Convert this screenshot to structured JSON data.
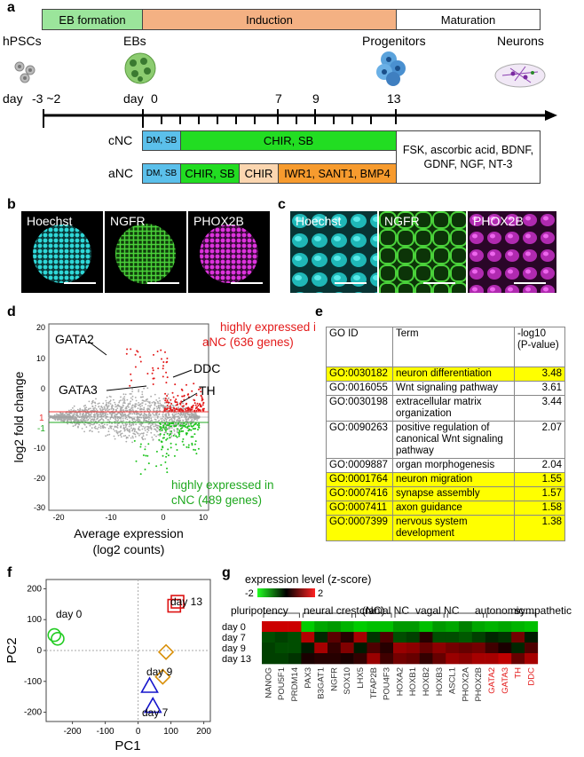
{
  "panel_labels": {
    "a": "a",
    "b": "b",
    "c": "c",
    "d": "d",
    "e": "e",
    "f": "f",
    "g": "g"
  },
  "timeline": {
    "phases": [
      "EB formation",
      "Induction",
      "Maturation"
    ],
    "stages": [
      "hPSCs",
      "EBs",
      "Progenitors",
      "Neurons"
    ],
    "day_label": "day",
    "day_minus": "-3 ~2",
    "day0": "0",
    "day7": "7",
    "day9": "9",
    "day13": "13",
    "cnc": {
      "label": "cNC",
      "seg1": "DM, SB",
      "seg2": "CHIR, SB"
    },
    "anc": {
      "label": "aNC",
      "seg1": "DM, SB",
      "seg2": "CHIR, SB",
      "seg3": "CHIR",
      "seg4": "IWR1, SANT1, BMP4"
    },
    "maturation": "FSK, ascorbic acid, BDNF, GDNF, NGF, NT-3",
    "colors": {
      "eb": "#9be59b",
      "induction": "#f4b183",
      "dmsb": "#5bc0eb",
      "chirsb": "#22dd22",
      "chir": "#fbd6b0",
      "iwr": "#f79b2e"
    }
  },
  "panel_b": [
    "Hoechst",
    "NGFR",
    "PHOX2B"
  ],
  "panel_c": [
    "Hoechst",
    "NGFR",
    "PHOX2B"
  ],
  "panel_d": {
    "ylabel": "log2 fold change",
    "xlabel": "Average expression",
    "xlabel2": "(log2 counts)",
    "yticks": [
      "20",
      "10",
      "0",
      "-10",
      "-20",
      "-30"
    ],
    "xticks": [
      "-20",
      "-10",
      "0",
      "10"
    ],
    "line_pos": "1",
    "line_neg": "-1",
    "genes": [
      "GATA2",
      "GATA3",
      "DDC",
      "TH"
    ],
    "up_text1": "highly expressed in",
    "up_text2": "aNC (636 genes)",
    "down_text1": "highly expressed in",
    "down_text2": "cNC (489 genes)"
  },
  "panel_e": {
    "headers": [
      "GO ID",
      "Term",
      "-log10 (P-value)"
    ],
    "rows": [
      {
        "id": "GO:0030182",
        "term": "neuron differentiation",
        "value": "3.48",
        "highlight": true
      },
      {
        "id": "GO:0016055",
        "term": "Wnt signaling pathway",
        "value": "3.61",
        "highlight": false
      },
      {
        "id": "GO:0030198",
        "term": "extracellular matrix organization",
        "value": "3.44",
        "highlight": false
      },
      {
        "id": "GO:0090263",
        "term": "positive regulation of canonical Wnt signaling pathway",
        "value": "2.07",
        "highlight": false
      },
      {
        "id": "GO:0009887",
        "term": "organ morphogenesis",
        "value": "2.04",
        "highlight": false
      },
      {
        "id": "GO:0001764",
        "term": "neuron migration",
        "value": "1.55",
        "highlight": true
      },
      {
        "id": "GO:0007416",
        "term": "synapse assembly",
        "value": "1.57",
        "highlight": true
      },
      {
        "id": "GO:0007411",
        "term": "axon guidance",
        "value": "1.58",
        "highlight": true
      },
      {
        "id": "GO:0007399",
        "term": "nervous system development",
        "value": "1.38",
        "highlight": true
      }
    ]
  },
  "chart_data": [
    {
      "type": "scatter",
      "xlabel": "PC1",
      "ylabel": "PC2",
      "xticks": [
        "-200",
        "-100",
        "0",
        "100",
        "200"
      ],
      "yticks": [
        "200",
        "100",
        "0",
        "-100",
        "-200"
      ],
      "xlim": [
        -280,
        220
      ],
      "ylim": [
        -230,
        230
      ],
      "series": [
        {
          "name": "day 0",
          "marker": "circle",
          "color": "#22cc22",
          "x": [
            -255,
            -245
          ],
          "y": [
            50,
            38
          ]
        },
        {
          "name": "day 7",
          "marker": "triangle",
          "color": "#1515cc",
          "x": [
            35,
            45
          ],
          "y": [
            -115,
            -180
          ]
        },
        {
          "name": "day 9",
          "marker": "diamond",
          "color": "#d9900a",
          "x": [
            85,
            75
          ],
          "y": [
            -5,
            -85
          ]
        },
        {
          "name": "day 13",
          "marker": "square",
          "color": "#dd1111",
          "x": [
            120,
            110
          ],
          "y": [
            158,
            145
          ]
        }
      ]
    },
    {
      "type": "heatmap",
      "legend_title": "expression level (z-score)",
      "legend_min": "-2",
      "legend_max": "2",
      "rows": [
        "day 0",
        "day 7",
        "day 9",
        "day 13"
      ],
      "columns": [
        "NANOG",
        "POU5F1",
        "PRDM14",
        "PAX3",
        "B3GAT1",
        "NGFR",
        "SOX10",
        "LHX5",
        "TFAP2B",
        "POU4F3",
        "HOXA2",
        "HOXB1",
        "HOXB2",
        "HOXB3",
        "ASCL1",
        "PHOX2A",
        "PHOX2B",
        "GATA2",
        "GATA3",
        "TH",
        "DDC"
      ],
      "red_columns": [
        "GATA2",
        "GATA3",
        "TH",
        "DDC"
      ],
      "groups": [
        "pluripotency",
        "neural crest (NC)",
        "cranial NC",
        "vagal NC",
        "autonomic",
        "sympathetic"
      ],
      "values": [
        [
          1.6,
          1.6,
          1.6,
          -1.6,
          -1.3,
          -1.2,
          -1.4,
          -1.6,
          -1.5,
          -1.5,
          -1.2,
          -1.2,
          -1.5,
          -1.2,
          -1.3,
          -1.0,
          -1.3,
          -1.4,
          -1.3,
          -1.4,
          -1.5
        ],
        [
          -0.6,
          -0.5,
          -0.6,
          1.4,
          -0.3,
          0.7,
          0.3,
          1.3,
          -0.4,
          0.6,
          -0.6,
          -0.5,
          0.3,
          -0.6,
          -0.6,
          -0.7,
          -0.5,
          -0.3,
          -0.4,
          0.9,
          -0.2
        ],
        [
          -0.5,
          -0.6,
          -0.6,
          -0.2,
          1.3,
          0.4,
          1.0,
          -0.2,
          0.6,
          0.3,
          1.2,
          1.1,
          0.8,
          1.1,
          0.9,
          0.8,
          0.9,
          0.5,
          0.2,
          -0.3,
          0.6
        ],
        [
          -0.5,
          -0.5,
          -0.4,
          0.2,
          0.3,
          0.3,
          0.2,
          0.4,
          1.2,
          0.5,
          0.9,
          0.8,
          0.4,
          0.8,
          1.2,
          1.1,
          1.3,
          1.3,
          1.5,
          0.8,
          1.3
        ]
      ]
    }
  ]
}
